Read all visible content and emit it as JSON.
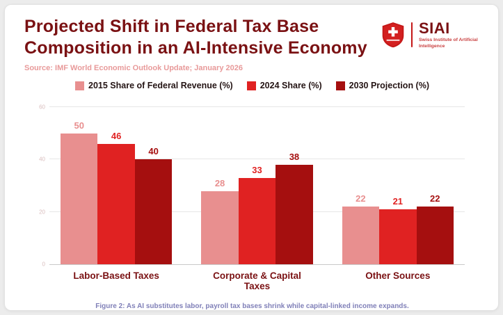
{
  "header": {
    "title_line1": "Projected Shift in Federal Tax Base",
    "title_line2": "Composition in an AI-Intensive Economy",
    "source": "Source: IMF World Economic Outlook Update; January 2026"
  },
  "logo": {
    "brand": "SIAI",
    "tagline": "Swiss Institute of Artificial Intelligence"
  },
  "chart_data": {
    "type": "bar",
    "title": "Projected Shift in Federal Tax Base Composition in an AI-Intensive Economy",
    "categories": [
      "Labor-Based Taxes",
      "Corporate & Capital Taxes",
      "Other Sources"
    ],
    "series": [
      {
        "name": "2015 Share of Federal Revenue (%)",
        "color": "#e88f8f",
        "values": [
          50,
          28,
          22
        ]
      },
      {
        "name": "2024 Share (%)",
        "color": "#e02222",
        "values": [
          46,
          33,
          21
        ]
      },
      {
        "name": "2030 Projection (%)",
        "color": "#a50f0f",
        "values": [
          40,
          38,
          22
        ]
      }
    ],
    "ylim": [
      0,
      60
    ],
    "yticks": [
      0,
      20,
      40,
      60
    ],
    "grid": true,
    "legend_position": "top"
  },
  "caption": "Figure 2: As AI substitutes labor, payroll tax bases shrink while capital-linked income expands."
}
